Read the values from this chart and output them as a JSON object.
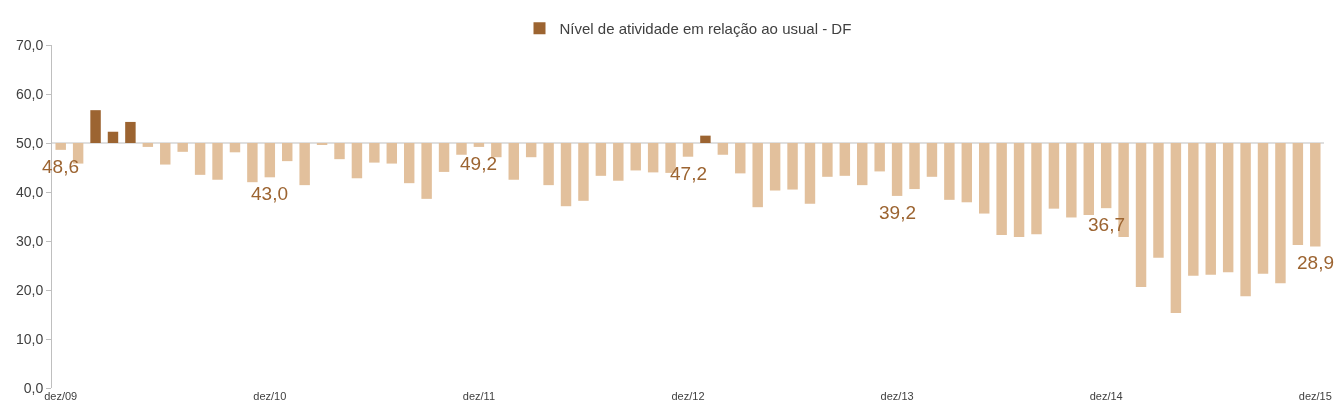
{
  "chart_data": {
    "type": "bar",
    "categories": [
      "dez/09",
      null,
      null,
      null,
      null,
      null,
      null,
      null,
      null,
      null,
      null,
      null,
      "dez/10",
      null,
      null,
      null,
      null,
      null,
      null,
      null,
      null,
      null,
      null,
      null,
      "dez/11",
      null,
      null,
      null,
      null,
      null,
      null,
      null,
      null,
      null,
      null,
      null,
      "dez/12",
      null,
      null,
      null,
      null,
      null,
      null,
      null,
      null,
      null,
      null,
      null,
      "dez/13",
      null,
      null,
      null,
      null,
      null,
      null,
      null,
      null,
      null,
      null,
      null,
      "dez/14",
      null,
      null,
      null,
      null,
      null,
      null,
      null,
      null,
      null,
      null,
      null,
      "dez/15"
    ],
    "series": [
      {
        "name": "Nível de atividade em relação ao usual - DF",
        "color": "#9c6431",
        "values": [
          -1.4,
          -4.2,
          6.7,
          2.3,
          4.3,
          -0.8,
          -4.4,
          -1.8,
          -6.5,
          -7.5,
          -1.9,
          -8.0,
          -7.0,
          -3.7,
          -8.6,
          -0.3,
          -3.3,
          -7.2,
          -4.0,
          -4.2,
          -8.2,
          -11.4,
          -5.9,
          -2.4,
          -0.8,
          -2.9,
          -7.5,
          -2.9,
          -8.6,
          -12.9,
          -11.8,
          -6.7,
          -7.7,
          -5.6,
          -6.0,
          -6.1,
          -2.8,
          1.5,
          -2.4,
          -6.2,
          -13.1,
          -9.7,
          -9.5,
          -12.4,
          -6.9,
          -6.7,
          -8.6,
          -5.8,
          -10.8,
          -9.4,
          -6.9,
          -11.6,
          -12.1,
          -14.4,
          -18.8,
          -19.2,
          -18.6,
          -13.4,
          -15.2,
          -14.7,
          -13.3,
          -19.2,
          -29.4,
          -23.4,
          -34.7,
          -27.1,
          -26.9,
          -26.4,
          -31.3,
          -26.7,
          -28.6,
          -20.8,
          -21.1
        ],
        "base": [
          50,
          50,
          50,
          50,
          50,
          50,
          50,
          50,
          50,
          50,
          50,
          50,
          50,
          50,
          50,
          50,
          50,
          50,
          50,
          50,
          50,
          50,
          50,
          50,
          50,
          50,
          50,
          50,
          50,
          50,
          50,
          50,
          50,
          50,
          50,
          50,
          50,
          50,
          50,
          50,
          50,
          50,
          50,
          50,
          50,
          50,
          50,
          50,
          50,
          50,
          50,
          50,
          50,
          50,
          50,
          50,
          50,
          50,
          50,
          50,
          50,
          50,
          50,
          50,
          50,
          50,
          50,
          50,
          50,
          50,
          50,
          50,
          50
        ],
        "colors": [
          "#e2c09c",
          "#e2c09c",
          "#9c6431",
          "#9c6431",
          "#9c6431",
          "#e2c09c",
          "#e2c09c",
          "#e2c09c",
          "#e2c09c",
          "#e2c09c",
          "#e2c09c",
          "#e2c09c",
          "#e2c09c",
          "#e2c09c",
          "#e2c09c",
          "#e2c09c",
          "#e2c09c",
          "#e2c09c",
          "#e2c09c",
          "#e2c09c",
          "#e2c09c",
          "#e2c09c",
          "#e2c09c",
          "#e2c09c",
          "#e2c09c",
          "#e2c09c",
          "#e2c09c",
          "#e2c09c",
          "#e2c09c",
          "#e2c09c",
          "#e2c09c",
          "#e2c09c",
          "#e2c09c",
          "#e2c09c",
          "#e2c09c",
          "#e2c09c",
          "#e2c09c",
          "#9c6431",
          "#e2c09c",
          "#e2c09c",
          "#e2c09c",
          "#e2c09c",
          "#e2c09c",
          "#e2c09c",
          "#e2c09c",
          "#e2c09c",
          "#e2c09c",
          "#e2c09c",
          "#e2c09c",
          "#e2c09c",
          "#e2c09c",
          "#e2c09c",
          "#e2c09c",
          "#e2c09c",
          "#e2c09c",
          "#e2c09c",
          "#e2c09c",
          "#e2c09c",
          "#e2c09c",
          "#e2c09c",
          "#e2c09c",
          "#e2c09c",
          "#e2c09c",
          "#e2c09c",
          "#e2c09c",
          "#e2c09c",
          "#e2c09c",
          "#e2c09c",
          "#e2c09c",
          "#e2c09c",
          "#e2c09c",
          "#e2c09c",
          "#e2c09c"
        ]
      }
    ],
    "ylim": [
      0,
      70
    ],
    "yticks": [
      {
        "value": 0,
        "label": "0,0"
      },
      {
        "value": 10,
        "label": "10,0"
      },
      {
        "value": 20,
        "label": "20,0"
      },
      {
        "value": 30,
        "label": "30,0"
      },
      {
        "value": 40,
        "label": "40,0"
      },
      {
        "value": 50,
        "label": "50,0"
      },
      {
        "value": 60,
        "label": "60,0"
      },
      {
        "value": 70,
        "label": "70,0"
      }
    ],
    "ref_lines": [
      {
        "axis": "y",
        "value": 50,
        "color": "#bfbfbf"
      }
    ],
    "annotations": [
      {
        "text": "48,6",
        "x": "dez/09",
        "y": 48.6
      },
      {
        "text": "43,0",
        "x": "dez/10",
        "y": 43.0
      },
      {
        "text": "49,2",
        "x": "dez/11",
        "y": 49.2
      },
      {
        "text": "47,2",
        "x": "dez/12",
        "y": 47.2
      },
      {
        "text": "39,2",
        "x": "dez/13",
        "y": 39.2
      },
      {
        "text": "36,7",
        "x": "dez/14",
        "y": 36.7
      },
      {
        "text": "28,9",
        "x": "dez/15",
        "y": 28.9
      }
    ],
    "grid": false,
    "legend": "top"
  }
}
